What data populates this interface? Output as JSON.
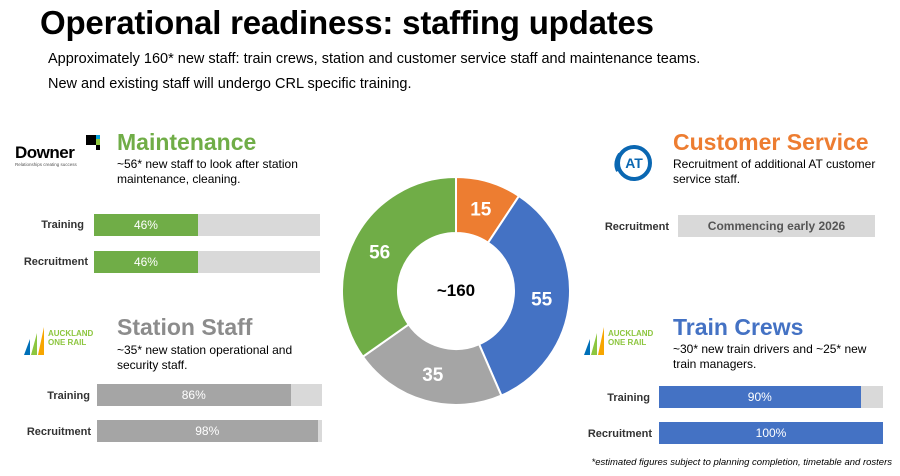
{
  "title": "Operational readiness: staffing updates",
  "subtitle_lines": [
    "Approximately 160* new staff: train crews, station and customer service staff and maintenance teams.",
    "New and existing staff will undergo CRL specific training."
  ],
  "donut": {
    "center_label": "~160",
    "segments": [
      {
        "label": "15",
        "value": 15,
        "color": "#ed7d31"
      },
      {
        "label": "55",
        "value": 55,
        "color": "#4472c4"
      },
      {
        "label": "35",
        "value": 35,
        "color": "#a5a5a5"
      },
      {
        "label": "56",
        "value": 56,
        "color": "#70ad47"
      }
    ]
  },
  "sections": {
    "maintenance": {
      "title": "Maintenance",
      "logo_text": "Downer",
      "logo_tagline": "Relationships creating success",
      "description": "~56* new staff to look after station maintenance, cleaning.",
      "color": "#70ad47",
      "bars": [
        {
          "label": "Training",
          "value_text": "46%",
          "fraction": 0.46
        },
        {
          "label": "Recruitment",
          "value_text": "46%",
          "fraction": 0.46
        }
      ]
    },
    "customer_service": {
      "title": "Customer Service",
      "logo_text": "AT",
      "description": "Recruitment of additional AT customer service staff.",
      "color": "#ed7d31",
      "bars": [
        {
          "label": "Recruitment",
          "value_text": "Commencing early 2026"
        }
      ]
    },
    "station_staff": {
      "title": "Station Staff",
      "logo_text": [
        "AUCKLAND",
        "ONE RAIL"
      ],
      "description": "~35* new station operational and security staff.",
      "color": "#a5a5a5",
      "bars": [
        {
          "label": "Training",
          "value_text": "86%",
          "fraction": 0.86
        },
        {
          "label": "Recruitment",
          "value_text": "98%",
          "fraction": 0.98
        }
      ]
    },
    "train_crews": {
      "title": "Train Crews",
      "logo_text": [
        "AUCKLAND",
        "ONE RAIL"
      ],
      "description": "~30* new train drivers and ~25* new train managers.",
      "color": "#4472c4",
      "bars": [
        {
          "label": "Training",
          "value_text": "90%",
          "fraction": 0.9
        },
        {
          "label": "Recruitment",
          "value_text": "100%",
          "fraction": 1.0
        }
      ]
    }
  },
  "footnote": "*estimated figures subject to planning completion, timetable and rosters"
}
